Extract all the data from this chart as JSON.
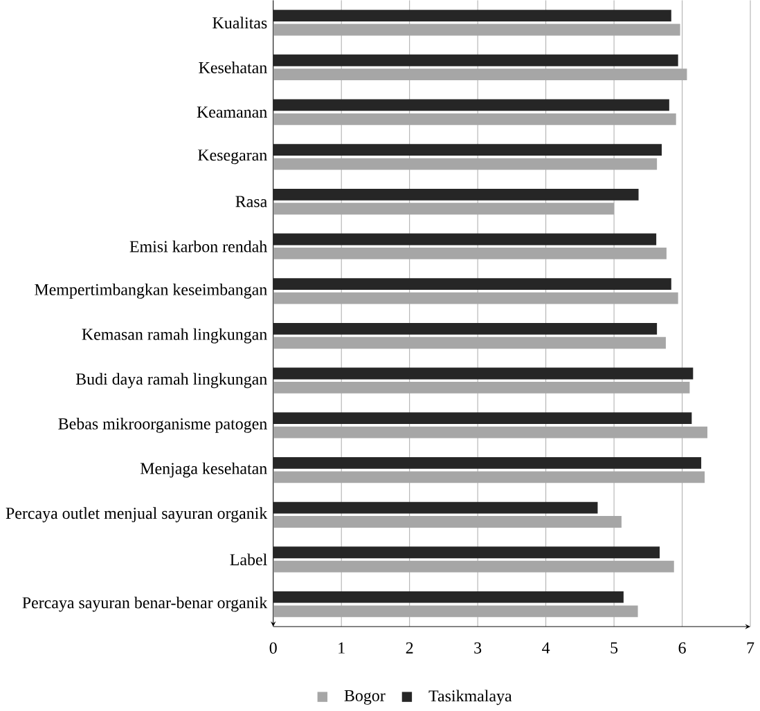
{
  "chart_data": {
    "type": "bar",
    "orientation": "horizontal",
    "categories": [
      "Kualitas",
      "Kesehatan",
      "Keamanan",
      "Kesegaran",
      "Rasa",
      "Emisi karbon rendah",
      "Mempertimbangkan keseimbangan",
      "Kemasan ramah lingkungan",
      "Budi daya ramah lingkungan",
      "Bebas mikroorganisme patogen",
      "Menjaga kesehatan",
      "Percaya outlet menjual sayuran organik",
      "Label",
      "Percaya sayuran benar-benar organik"
    ],
    "series": [
      {
        "name": "Bogor",
        "color": "#a6a6a6",
        "values": [
          5.97,
          6.07,
          5.91,
          5.63,
          5.0,
          5.77,
          5.94,
          5.76,
          6.11,
          6.37,
          6.33,
          5.11,
          5.88,
          5.35
        ]
      },
      {
        "name": "Tasikmalaya",
        "color": "#262626",
        "values": [
          5.84,
          5.94,
          5.81,
          5.7,
          5.36,
          5.62,
          5.84,
          5.63,
          6.16,
          6.14,
          6.28,
          4.76,
          5.67,
          5.14
        ]
      }
    ],
    "xlim": [
      0,
      7
    ],
    "xticks": [
      0,
      1,
      2,
      3,
      4,
      5,
      6,
      7
    ],
    "grid": "x",
    "legend": "bottom"
  }
}
